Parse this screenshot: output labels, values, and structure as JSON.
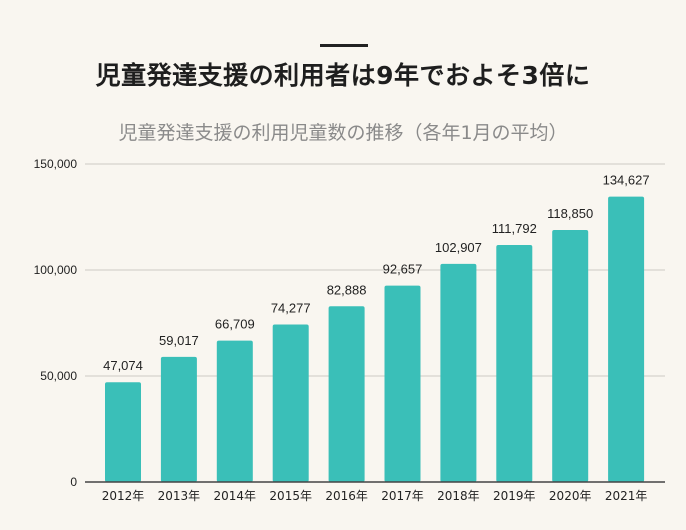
{
  "header": {
    "title": "児童発達支援の利用者は9年でおよそ3倍に"
  },
  "colors": {
    "bar": "#3abfb8",
    "grid": "#dcd9d3",
    "axis": "#444444"
  },
  "chart_data": {
    "type": "bar",
    "title": "児童発達支援の利用児童数の推移（各年1月の平均）",
    "xlabel": "",
    "ylabel": "",
    "categories": [
      "2012年",
      "2013年",
      "2014年",
      "2015年",
      "2016年",
      "2017年",
      "2018年",
      "2019年",
      "2020年",
      "2021年"
    ],
    "values": [
      47074,
      59017,
      66709,
      74277,
      82888,
      92657,
      102907,
      111792,
      118850,
      134627
    ],
    "data_labels": [
      "47,074",
      "59,017",
      "66,709",
      "74,277",
      "82,888",
      "92,657",
      "102,907",
      "111,792",
      "118,850",
      "134,627"
    ],
    "ylim": [
      0,
      150000
    ],
    "yticks": [
      0,
      50000,
      100000,
      150000
    ],
    "ytick_labels": [
      "0",
      "50,000",
      "100,000",
      "150,000"
    ],
    "grid": true,
    "legend": "none"
  }
}
